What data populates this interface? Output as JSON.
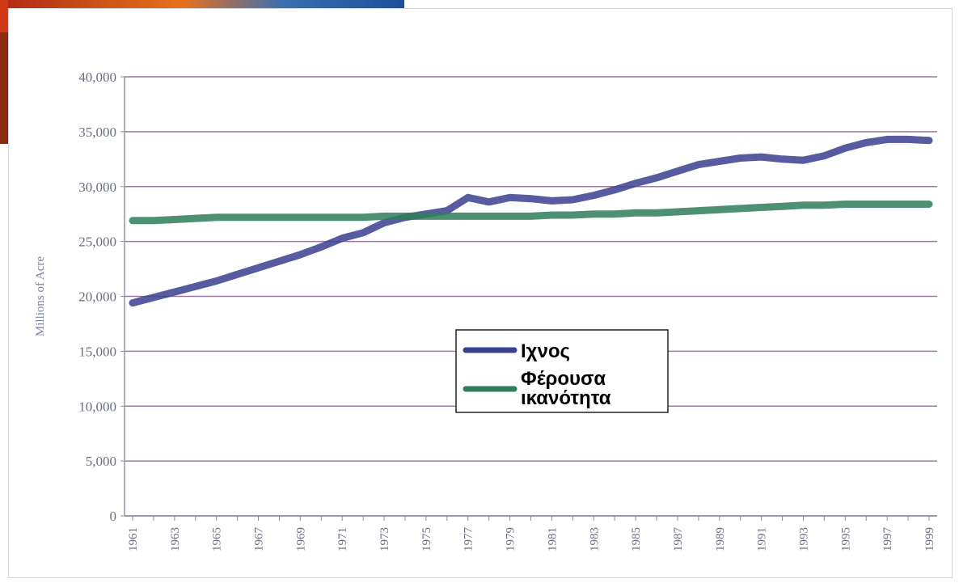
{
  "chart_data": {
    "type": "line",
    "title": "",
    "ylabel": "Millions of Acre",
    "xlabel": "",
    "ylim": [
      0,
      40000
    ],
    "yticks": [
      0,
      5000,
      10000,
      15000,
      20000,
      25000,
      30000,
      35000,
      40000
    ],
    "ytick_labels": [
      "0",
      "5,000",
      "10,000",
      "15,000",
      "20,000",
      "25,000",
      "30,000",
      "35,000",
      "40,000"
    ],
    "xlim": [
      1961,
      1999
    ],
    "xticks": [
      "1961",
      "1963",
      "1965",
      "1967",
      "1969",
      "1971",
      "1973",
      "1975",
      "1977",
      "1979",
      "1981",
      "1983",
      "1985",
      "1987",
      "1989",
      "1991",
      "1993",
      "1995",
      "1997",
      "1999"
    ],
    "grid": true,
    "legend_position": "center",
    "series": [
      {
        "name": "Ιχνος",
        "color": "#3a3f8f",
        "x": [
          1961,
          1962,
          1963,
          1964,
          1965,
          1966,
          1967,
          1968,
          1969,
          1970,
          1971,
          1972,
          1973,
          1974,
          1975,
          1976,
          1977,
          1978,
          1979,
          1980,
          1981,
          1982,
          1983,
          1984,
          1985,
          1986,
          1987,
          1988,
          1989,
          1990,
          1991,
          1992,
          1993,
          1994,
          1995,
          1996,
          1997,
          1998,
          1999
        ],
        "values": [
          19400,
          19900,
          20400,
          20900,
          21400,
          22000,
          22600,
          23200,
          23800,
          24500,
          25300,
          25800,
          26700,
          27200,
          27500,
          27800,
          29000,
          28600,
          29000,
          28900,
          28700,
          28800,
          29200,
          29700,
          30300,
          30800,
          31400,
          32000,
          32300,
          32600,
          32700,
          32500,
          32400,
          32800,
          33500,
          34000,
          34300,
          34300,
          34200
        ]
      },
      {
        "name": "Φέρουσα ικανότητα",
        "color": "#2f7d5a",
        "x": [
          1961,
          1962,
          1963,
          1964,
          1965,
          1966,
          1967,
          1968,
          1969,
          1970,
          1971,
          1972,
          1973,
          1974,
          1975,
          1976,
          1977,
          1978,
          1979,
          1980,
          1981,
          1982,
          1983,
          1984,
          1985,
          1986,
          1987,
          1988,
          1989,
          1990,
          1991,
          1992,
          1993,
          1994,
          1995,
          1996,
          1997,
          1998,
          1999
        ],
        "values": [
          26900,
          26900,
          27000,
          27100,
          27200,
          27200,
          27200,
          27200,
          27200,
          27200,
          27200,
          27200,
          27300,
          27300,
          27300,
          27300,
          27300,
          27300,
          27300,
          27300,
          27400,
          27400,
          27500,
          27500,
          27600,
          27600,
          27700,
          27800,
          27900,
          28000,
          28100,
          28200,
          28300,
          28300,
          28400,
          28400,
          28400,
          28400,
          28400
        ]
      }
    ]
  },
  "colors": {
    "grid": "#7a4f7a",
    "axis": "#8a8fa0",
    "tick_text": "#6a6f80",
    "legend_border": "#222222",
    "corner_art": [
      "#d8381e",
      "#f08a20",
      "#1f6fc0"
    ]
  }
}
